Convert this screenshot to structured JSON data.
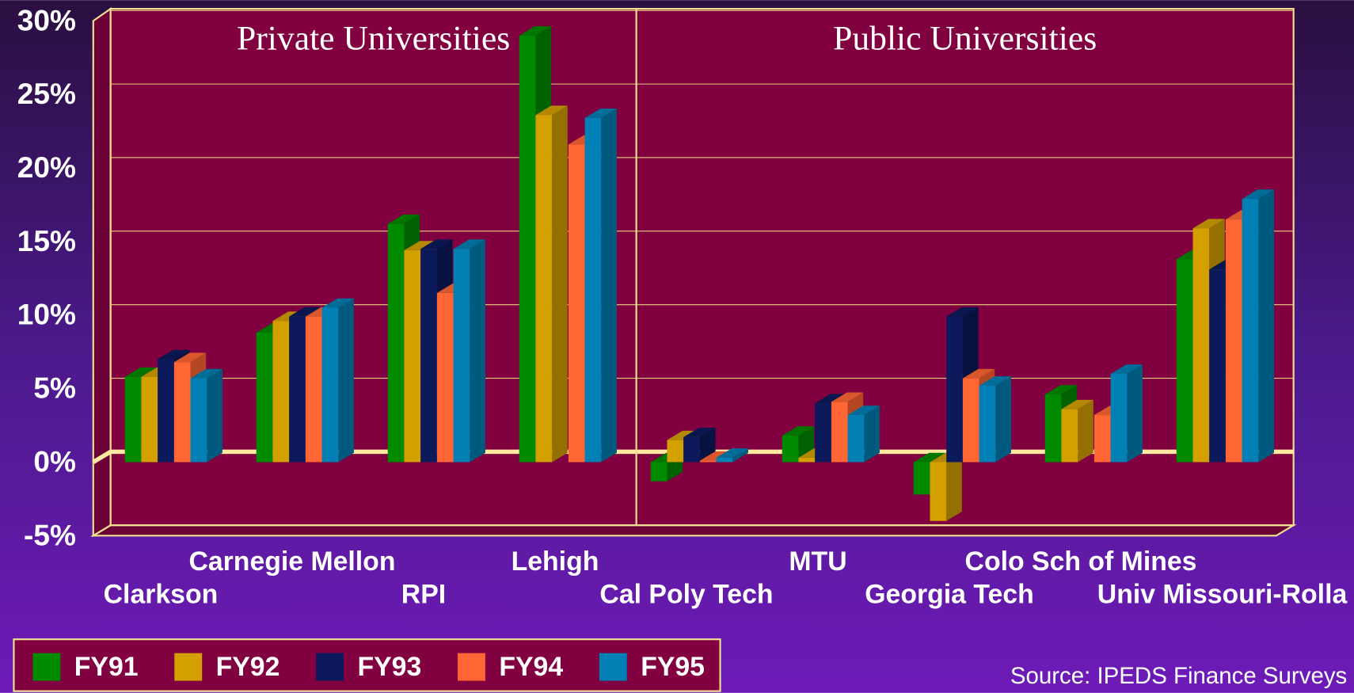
{
  "chart_data": {
    "type": "bar3d",
    "annotations": [
      "Private Universities",
      "Public Universities"
    ],
    "categories": [
      "Clarkson",
      "Carnegie Mellon",
      "RPI",
      "Lehigh",
      "Cal Poly Tech",
      "MTU",
      "Georgia Tech",
      "Colo Sch of Mines",
      "Univ Missouri-Rolla"
    ],
    "series": [
      {
        "name": "FY91",
        "color": "#008a00",
        "values": [
          5.8,
          8.8,
          16.2,
          29,
          -1.3,
          1.8,
          -2.2,
          4.6,
          13.8
        ]
      },
      {
        "name": "FY92",
        "color": "#d4a000",
        "values": [
          5.8,
          9.6,
          14.4,
          23.6,
          1.5,
          0.3,
          -4,
          3.6,
          15.9
        ]
      },
      {
        "name": "FY93",
        "color": "#0c1a5c",
        "values": [
          7,
          9.9,
          14.5,
          null,
          1.7,
          4,
          9.9,
          null,
          13.1
        ]
      },
      {
        "name": "FY94",
        "color": "#ff6633",
        "values": [
          6.8,
          9.9,
          11.5,
          21.6,
          0.1,
          4.1,
          5.7,
          3.2,
          16.5
        ]
      },
      {
        "name": "FY95",
        "color": "#0080b4",
        "values": [
          5.7,
          10.5,
          14.5,
          23.4,
          0.3,
          3.2,
          5.2,
          6,
          17.9
        ]
      }
    ],
    "ylim": [
      -5,
      30
    ],
    "yticks": [
      {
        "value": -5,
        "label": "-5%"
      },
      {
        "value": 0,
        "label": "0%"
      },
      {
        "value": 5,
        "label": "5%"
      },
      {
        "value": 10,
        "label": "10%"
      },
      {
        "value": 15,
        "label": "15%"
      },
      {
        "value": 20,
        "label": "20%"
      },
      {
        "value": 25,
        "label": "25%"
      },
      {
        "value": 30,
        "label": "30%"
      }
    ],
    "grid": true,
    "legend": "bottom-left",
    "source": "Source: IPEDS Finance Surveys"
  }
}
